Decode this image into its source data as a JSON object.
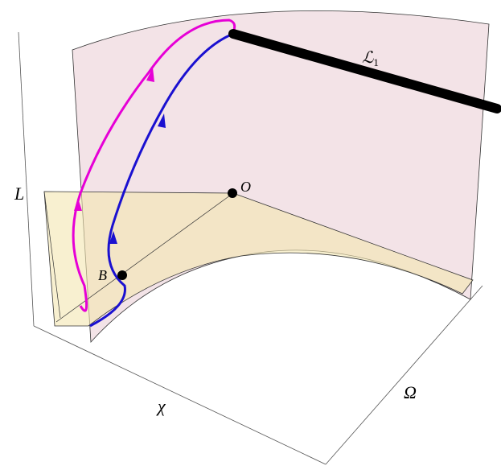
{
  "labels": {
    "vertical_axis": "L",
    "chi_axis": "χ",
    "omega_axis": "Ω",
    "origin": "O",
    "point_b": "B",
    "line": "ℒ",
    "line_subscript": "1"
  }
}
